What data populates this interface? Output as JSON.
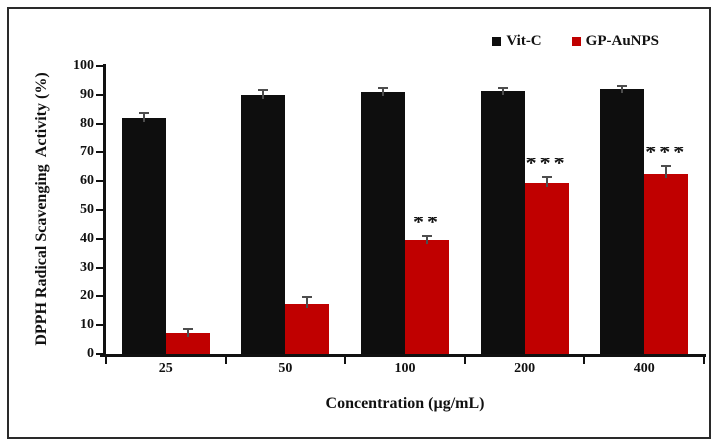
{
  "chart_data": {
    "type": "bar",
    "title": "",
    "xlabel": "Concentration (µg/mL)",
    "ylabel": "DPPH Radical Scavenging  Activity (%)",
    "categories": [
      "25",
      "50",
      "100",
      "200",
      "400"
    ],
    "ylim": [
      0,
      100
    ],
    "yticks": [
      0,
      10,
      20,
      30,
      40,
      50,
      60,
      70,
      80,
      90,
      100
    ],
    "grid": false,
    "legend_position": "top-right",
    "series": [
      {
        "name": "Vit-C",
        "color": "#0e0e0e",
        "values": [
          81.8,
          89.8,
          91.0,
          91.4,
          92.0
        ],
        "errors": [
          1.5,
          1.6,
          0.9,
          0.5,
          0.7
        ]
      },
      {
        "name": "GP-AuNPS",
        "color": "#c00000",
        "values": [
          7.3,
          17.5,
          39.6,
          59.3,
          62.4
        ],
        "errors": [
          1.0,
          2.0,
          1.2,
          1.8,
          2.4
        ]
      }
    ],
    "annotations": [
      {
        "category": "100",
        "series": "GP-AuNPS",
        "text": "**"
      },
      {
        "category": "200",
        "series": "GP-AuNPS",
        "text": "***"
      },
      {
        "category": "400",
        "series": "GP-AuNPS",
        "text": "***"
      }
    ]
  },
  "colors": {
    "axis": "#111111",
    "error_bar": "#4d4d4d",
    "frame_border": "#2a2a2a",
    "background": "#ffffff"
  }
}
